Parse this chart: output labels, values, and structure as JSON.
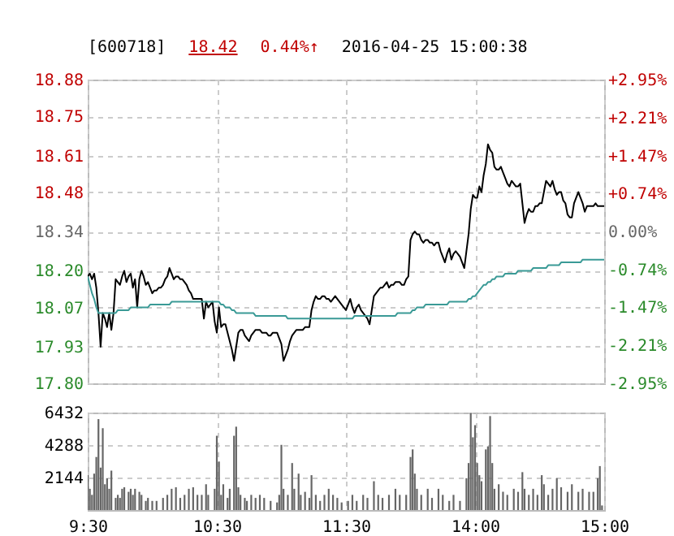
{
  "chart_data": [
    {
      "type": "line",
      "title": "[600718]",
      "annotations": [
        "18.42",
        "0.44%↑",
        "2016-04-25 15:00:38"
      ],
      "categories": [
        null,
        null,
        null,
        null,
        null,
        null,
        null,
        null,
        null,
        null,
        null,
        null,
        null,
        null,
        null,
        null,
        null,
        null,
        null,
        null,
        null,
        null,
        null,
        null,
        null,
        null,
        null,
        null,
        null,
        null,
        null,
        null,
        null,
        null,
        null,
        null,
        null,
        null,
        null,
        null,
        null,
        null,
        null,
        null,
        null,
        null,
        null,
        null,
        null,
        null,
        null,
        null,
        null,
        null,
        null,
        null,
        null,
        null,
        null,
        null,
        null,
        null,
        null,
        null,
        null,
        null,
        null,
        null,
        null,
        null,
        null,
        null,
        null,
        null,
        null,
        null,
        null,
        null,
        null,
        null,
        null,
        null,
        null,
        null,
        null,
        null,
        null,
        null,
        null,
        null,
        null,
        null,
        null,
        null,
        null,
        null,
        null,
        null,
        null,
        null,
        null,
        null,
        null,
        null,
        null,
        null,
        null,
        null,
        null,
        null,
        null,
        null,
        null,
        null,
        null,
        null,
        null,
        null,
        null,
        null,
        null,
        null,
        null,
        null,
        null,
        null,
        null,
        null,
        null,
        null,
        null,
        null,
        null,
        null,
        null,
        null,
        null,
        null,
        null,
        null,
        null,
        null,
        null,
        null,
        null,
        null,
        null,
        null,
        null,
        null,
        null,
        null,
        null,
        null,
        null,
        null,
        null,
        null,
        null,
        null,
        null,
        null,
        null,
        null,
        null,
        null,
        null,
        null,
        null,
        null,
        null,
        null,
        null,
        null,
        null,
        null,
        null,
        null,
        null,
        null,
        null,
        null,
        null,
        null,
        null,
        null,
        null,
        null,
        null,
        null,
        null,
        null,
        null,
        null,
        null,
        null,
        null,
        null,
        null,
        null,
        null,
        null,
        null,
        null,
        null,
        null,
        null,
        null,
        null,
        null,
        null,
        null,
        null,
        null,
        null,
        null,
        null,
        null,
        null,
        null,
        null,
        null,
        null,
        null,
        null,
        null,
        null,
        null,
        null,
        null,
        null,
        null,
        null,
        null,
        null,
        null,
        null,
        null,
        null,
        null,
        null
      ],
      "ylim": [
        17.8,
        18.88
      ],
      "yticks": [
        {
          "value": 17.8,
          "label": "17.80"
        },
        17.93,
        18.07,
        {
          "value": 18.2,
          "label": "18.20"
        },
        18.34,
        18.48,
        18.61,
        18.75,
        18.88
      ],
      "y2lim": [
        -2.95,
        2.95
      ],
      "y2ticks": [
        {
          "value": -2.95,
          "label": "-2.95%"
        },
        {
          "value": -2.21,
          "label": "-2.21%"
        },
        {
          "value": -1.47,
          "label": "-1.47%"
        },
        {
          "value": -0.74,
          "label": "-0.74%"
        },
        {
          "value": 0,
          "label": "0.00%"
        },
        {
          "value": 0.74,
          "label": "+0.74%"
        },
        {
          "value": 1.47,
          "label": "+1.47%"
        },
        {
          "value": 2.21,
          "label": "+2.21%"
        },
        {
          "value": 2.95,
          "label": "+2.95%"
        }
      ],
      "tick_labels": "y",
      "grid": true,
      "series": [
        {
          "color": "#000000",
          "values": [
            18.18,
            18.19,
            18.17,
            18.19,
            18.14,
            18.05,
            17.93,
            18.05,
            18.03,
            18.0,
            18.05,
            17.99,
            18.05,
            18.17,
            18.16,
            18.15,
            18.18,
            18.2,
            18.16,
            18.18,
            18.19,
            18.14,
            18.17,
            18.07,
            18.17,
            18.2,
            18.18,
            18.15,
            18.16,
            18.14,
            18.12,
            18.13,
            18.13,
            18.14,
            18.14,
            18.15,
            18.17,
            18.18,
            18.21,
            18.19,
            18.17,
            18.18,
            18.18,
            18.17,
            18.17,
            18.16,
            18.15,
            18.13,
            18.12,
            18.1,
            18.1,
            18.1,
            18.1,
            18.1,
            18.03,
            18.09,
            18.07,
            18.08,
            18.09,
            18.02,
            17.98,
            18.07,
            18.0,
            18.01,
            18.01,
            17.98,
            17.95,
            17.92,
            17.88,
            17.93,
            17.98,
            17.99,
            17.99,
            17.97,
            17.96,
            17.95,
            17.97,
            17.98,
            17.99,
            17.99,
            17.99,
            17.98,
            17.98,
            17.98,
            17.97,
            17.97,
            17.98,
            17.98,
            17.98,
            17.96,
            17.94,
            17.88,
            17.9,
            17.92,
            17.95,
            17.97,
            17.98,
            17.99,
            17.99,
            17.99,
            17.99,
            18.0,
            18.0,
            18.0,
            18.06,
            18.09,
            18.11,
            18.1,
            18.1,
            18.11,
            18.11,
            18.1,
            18.1,
            18.09,
            18.1,
            18.11,
            18.1,
            18.09,
            18.08,
            18.07,
            18.06,
            18.08,
            18.1,
            18.07,
            18.05,
            18.07,
            18.08,
            18.06,
            18.05,
            18.04,
            18.03,
            18.01,
            18.06,
            18.11,
            18.12,
            18.13,
            18.14,
            18.14,
            18.15,
            18.16,
            18.14,
            18.15,
            18.15,
            18.16,
            18.16,
            18.16,
            18.15,
            18.15,
            18.17,
            18.18,
            18.31,
            18.33,
            18.34,
            18.33,
            18.33,
            18.31,
            18.3,
            18.31,
            18.31,
            18.3,
            18.3,
            18.29,
            18.3,
            18.3,
            18.27,
            18.25,
            18.23,
            18.26,
            18.28,
            18.24,
            18.26,
            18.27,
            18.26,
            18.25,
            18.23,
            18.21,
            18.27,
            18.33,
            18.42,
            18.47,
            18.46,
            18.46,
            18.5,
            18.48,
            18.54,
            18.58,
            18.65,
            18.63,
            18.62,
            18.57,
            18.56,
            18.56,
            18.57,
            18.55,
            18.53,
            18.51,
            18.5,
            18.52,
            18.51,
            18.5,
            18.5,
            18.51,
            18.44,
            18.37,
            18.4,
            18.42,
            18.41,
            18.41,
            18.43,
            18.43,
            18.44,
            18.44,
            18.48,
            18.52,
            18.51,
            18.5,
            18.52,
            18.49,
            18.47,
            18.48,
            18.48,
            18.45,
            18.44,
            18.4,
            18.39,
            18.39,
            18.44,
            18.46,
            18.48,
            18.46,
            18.44,
            18.41,
            18.43,
            18.43,
            18.43,
            18.43,
            18.44,
            18.43,
            18.43,
            18.43,
            18.43
          ]
        },
        {
          "color": "#3a9a96",
          "values": [
            18.18,
            18.15,
            18.12,
            18.1,
            18.07,
            18.05,
            18.05,
            18.05,
            18.05,
            18.05,
            18.05,
            18.05,
            18.05,
            18.05,
            18.06,
            18.06,
            18.06,
            18.06,
            18.06,
            18.06,
            18.07,
            18.07,
            18.07,
            18.07,
            18.07,
            18.07,
            18.07,
            18.07,
            18.07,
            18.08,
            18.08,
            18.08,
            18.08,
            18.08,
            18.08,
            18.08,
            18.08,
            18.08,
            18.08,
            18.09,
            18.09,
            18.09,
            18.09,
            18.09,
            18.09,
            18.09,
            18.09,
            18.09,
            18.09,
            18.09,
            18.09,
            18.09,
            18.09,
            18.09,
            18.09,
            18.09,
            18.09,
            18.09,
            18.09,
            18.09,
            18.09,
            18.09,
            18.08,
            18.08,
            18.07,
            18.07,
            18.07,
            18.06,
            18.06,
            18.05,
            18.05,
            18.05,
            18.05,
            18.05,
            18.05,
            18.05,
            18.05,
            18.05,
            18.04,
            18.04,
            18.04,
            18.04,
            18.04,
            18.04,
            18.04,
            18.04,
            18.04,
            18.04,
            18.04,
            18.04,
            18.04,
            18.04,
            18.04,
            18.03,
            18.03,
            18.03,
            18.03,
            18.03,
            18.03,
            18.03,
            18.03,
            18.03,
            18.03,
            18.03,
            18.03,
            18.03,
            18.03,
            18.03,
            18.03,
            18.03,
            18.03,
            18.03,
            18.03,
            18.03,
            18.03,
            18.03,
            18.03,
            18.03,
            18.03,
            18.03,
            18.03,
            18.03,
            18.03,
            18.03,
            18.04,
            18.04,
            18.04,
            18.04,
            18.04,
            18.04,
            18.04,
            18.04,
            18.04,
            18.04,
            18.04,
            18.04,
            18.04,
            18.04,
            18.04,
            18.04,
            18.04,
            18.04,
            18.04,
            18.04,
            18.05,
            18.05,
            18.05,
            18.05,
            18.05,
            18.05,
            18.05,
            18.06,
            18.06,
            18.07,
            18.07,
            18.07,
            18.07,
            18.08,
            18.08,
            18.08,
            18.08,
            18.08,
            18.08,
            18.08,
            18.08,
            18.08,
            18.08,
            18.08,
            18.09,
            18.09,
            18.09,
            18.09,
            18.09,
            18.09,
            18.09,
            18.09,
            18.09,
            18.1,
            18.1,
            18.11,
            18.11,
            18.12,
            18.13,
            18.14,
            18.15,
            18.15,
            18.16,
            18.16,
            18.17,
            18.17,
            18.18,
            18.18,
            18.18,
            18.18,
            18.19,
            18.19,
            18.19,
            18.19,
            18.19,
            18.19,
            18.2,
            18.2,
            18.2,
            18.2,
            18.2,
            18.2,
            18.2,
            18.21,
            18.21,
            18.21,
            18.21,
            18.21,
            18.21,
            18.21,
            18.22,
            18.22,
            18.22,
            18.22,
            18.22,
            18.22,
            18.23,
            18.23,
            18.23,
            18.23,
            18.23,
            18.23,
            18.23,
            18.23,
            18.23,
            18.23,
            18.24,
            18.24,
            18.24,
            18.24,
            18.24,
            18.24,
            18.24,
            18.24,
            18.24,
            18.24,
            18.24
          ]
        }
      ]
    },
    {
      "type": "bar",
      "color": "#666666",
      "categories": [
        "9:30",
        null,
        null,
        null,
        null,
        null,
        null,
        null,
        null,
        null,
        null,
        null,
        null,
        null,
        null,
        null,
        null,
        null,
        null,
        null,
        null,
        null,
        null,
        null,
        null,
        null,
        null,
        null,
        null,
        null,
        null,
        null,
        null,
        null,
        null,
        null,
        null,
        null,
        null,
        null,
        null,
        null,
        null,
        null,
        null,
        null,
        null,
        null,
        null,
        null,
        null,
        null,
        null,
        null,
        null,
        null,
        null,
        null,
        null,
        null,
        "10:30",
        null,
        null,
        null,
        null,
        null,
        null,
        null,
        null,
        null,
        null,
        null,
        null,
        null,
        null,
        null,
        null,
        null,
        null,
        null,
        null,
        null,
        null,
        null,
        null,
        null,
        null,
        null,
        null,
        null,
        null,
        null,
        null,
        null,
        null,
        null,
        null,
        null,
        null,
        null,
        null,
        null,
        null,
        null,
        null,
        null,
        null,
        null,
        null,
        null,
        null,
        null,
        null,
        null,
        null,
        null,
        null,
        null,
        null,
        null,
        "11:30",
        null,
        null,
        null,
        null,
        null,
        null,
        null,
        null,
        null,
        null,
        null,
        null,
        null,
        null,
        null,
        null,
        null,
        null,
        null,
        null,
        null,
        null,
        null,
        null,
        null,
        null,
        null,
        null,
        null,
        null,
        null,
        null,
        null,
        null,
        null,
        null,
        null,
        null,
        null,
        null,
        null,
        null,
        null,
        null,
        null,
        null,
        null,
        null,
        null,
        null,
        null,
        null,
        null,
        null,
        null,
        null,
        null,
        null,
        null,
        "14:00",
        null,
        null,
        null,
        null,
        null,
        null,
        null,
        null,
        null,
        null,
        null,
        null,
        null,
        null,
        null,
        null,
        null,
        null,
        null,
        null,
        null,
        null,
        null,
        null,
        null,
        null,
        null,
        null,
        null,
        null,
        null,
        null,
        null,
        null,
        null,
        null,
        null,
        null,
        null,
        null,
        null,
        null,
        null,
        null,
        null,
        null,
        null,
        null,
        null,
        null,
        null,
        null,
        null,
        null,
        null,
        null,
        null,
        null,
        null,
        "15:00"
      ],
      "ylim": [
        0,
        6432
      ],
      "yticks": [
        2144,
        4288,
        6432
      ],
      "grid": true,
      "values": [
        2300,
        1400,
        1000,
        2400,
        3500,
        6000,
        2800,
        5400,
        1700,
        2100,
        1400,
        2600,
        null,
        800,
        1000,
        800,
        1400,
        1500,
        null,
        1200,
        1400,
        1000,
        1400,
        null,
        1200,
        1000,
        null,
        600,
        800,
        null,
        600,
        null,
        600,
        null,
        null,
        800,
        null,
        1000,
        null,
        1400,
        null,
        1500,
        null,
        800,
        null,
        1000,
        null,
        1400,
        null,
        1500,
        null,
        1000,
        null,
        1000,
        null,
        1700,
        1000,
        null,
        null,
        1400,
        4900,
        3200,
        1000,
        1700,
        null,
        800,
        1400,
        null,
        4900,
        5500,
        1500,
        1000,
        null,
        800,
        600,
        null,
        1000,
        null,
        800,
        null,
        1000,
        null,
        800,
        null,
        null,
        600,
        null,
        null,
        500,
        1000,
        4300,
        1400,
        null,
        1000,
        null,
        3100,
        1400,
        null,
        2400,
        1000,
        null,
        1200,
        null,
        800,
        2300,
        null,
        1000,
        null,
        600,
        null,
        1000,
        null,
        1400,
        null,
        1000,
        null,
        800,
        null,
        500,
        null,
        null,
        600,
        null,
        1000,
        null,
        600,
        null,
        null,
        1000,
        null,
        800,
        null,
        null,
        1900,
        null,
        1000,
        null,
        800,
        null,
        null,
        1000,
        null,
        null,
        1400,
        null,
        1000,
        null,
        null,
        1000,
        null,
        3500,
        4000,
        2400,
        1400,
        null,
        1000,
        null,
        null,
        1400,
        null,
        800,
        null,
        null,
        1400,
        null,
        1000,
        null,
        null,
        600,
        null,
        1000,
        null,
        null,
        600,
        null,
        null,
        2100,
        3100,
        6400,
        4800,
        5600,
        3100,
        2300,
        1900,
        null,
        4000,
        4200,
        6200,
        3100,
        1400,
        null,
        1700,
        null,
        1200,
        null,
        1000,
        null,
        null,
        1400,
        null,
        1200,
        null,
        2500,
        1400,
        null,
        1000,
        null,
        1400,
        null,
        1000,
        null,
        2300,
        1700,
        null,
        1000,
        null,
        1400,
        null,
        2100,
        null,
        1500,
        null,
        null,
        1200,
        null,
        1700,
        null,
        null,
        1200,
        null,
        1400,
        null,
        null,
        1200,
        null,
        1200,
        null,
        2100,
        2900,
        300,
        null
      ]
    }
  ]
}
